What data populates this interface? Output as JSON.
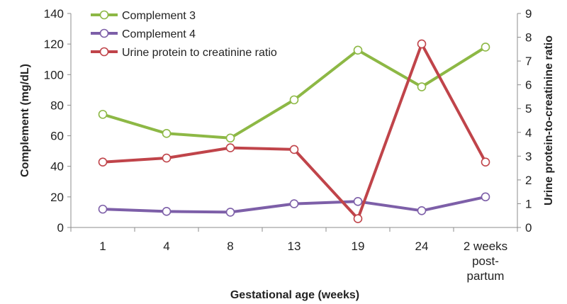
{
  "chart_data": {
    "type": "line",
    "categories": [
      "1",
      "4",
      "8",
      "13",
      "19",
      "24",
      "2 weeks post-partum"
    ],
    "category_lines": [
      [
        "1"
      ],
      [
        "4"
      ],
      [
        "8"
      ],
      [
        "13"
      ],
      [
        "19"
      ],
      [
        "24"
      ],
      [
        "2 weeks",
        "post-",
        "partum"
      ]
    ],
    "xlabel": "Gestational age (weeks)",
    "ylabel_left": "Complement (mg/dL)",
    "ylabel_right": "Urine protein-to-creatinine ratio",
    "ylim_left": [
      0,
      140
    ],
    "yticks_left": [
      0,
      20,
      40,
      60,
      80,
      100,
      120,
      140
    ],
    "ylim_right": [
      0,
      9
    ],
    "yticks_right": [
      0,
      1,
      2,
      3,
      4,
      5,
      6,
      7,
      8,
      9
    ],
    "grid": false,
    "legend_position": "top-left",
    "series": [
      {
        "name": "Complement 3",
        "axis": "left",
        "color": "#8db845",
        "values": [
          74,
          61.5,
          58.5,
          83.5,
          116,
          92,
          118
        ]
      },
      {
        "name": "Complement 4",
        "axis": "left",
        "color": "#7d5fa8",
        "values": [
          12,
          10.5,
          10,
          15.5,
          17,
          11,
          20
        ]
      },
      {
        "name": "Urine protein to creatinine ratio",
        "axis": "right",
        "color": "#c0444a",
        "values": [
          2.75,
          2.92,
          3.35,
          3.28,
          0.37,
          7.72,
          2.75
        ]
      }
    ]
  }
}
